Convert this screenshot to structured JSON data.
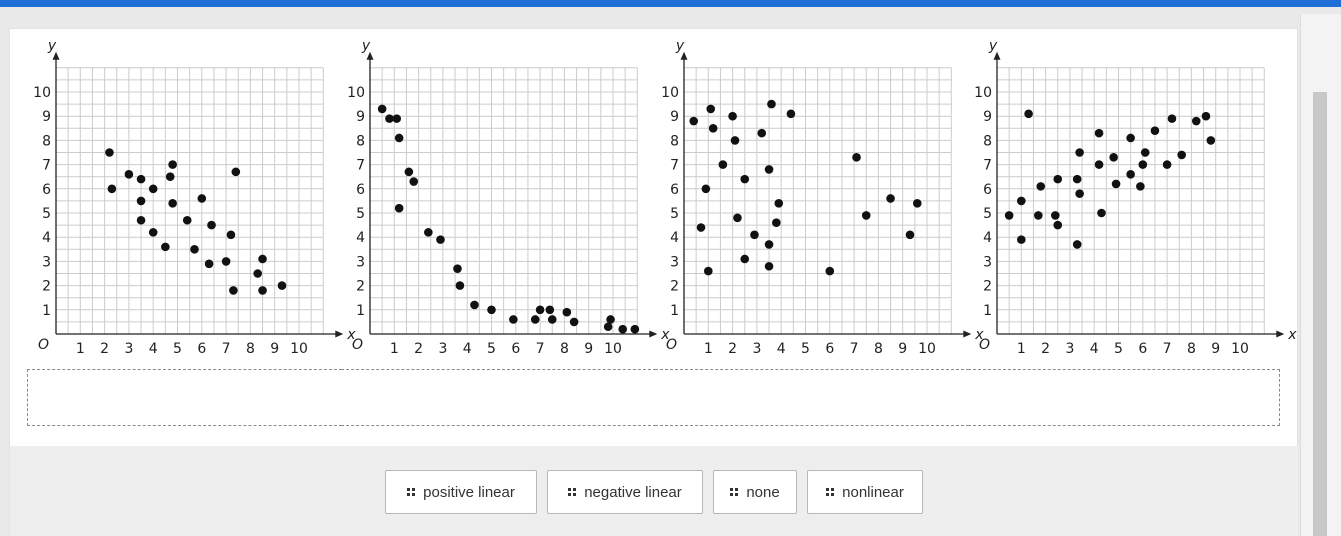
{
  "colors": {
    "topbar": "#1f6fd6",
    "point": "#111111",
    "grid": "#cccccc"
  },
  "chart_data": [
    {
      "type": "scatter",
      "xlabel": "x",
      "ylabel": "y",
      "xlim": [
        0,
        11
      ],
      "ylim": [
        0,
        11
      ],
      "grid": true,
      "x_ticks": [
        "1",
        "2",
        "3",
        "4",
        "5",
        "6",
        "7",
        "8",
        "9",
        "10"
      ],
      "y_ticks": [
        "1",
        "2",
        "3",
        "4",
        "5",
        "6",
        "7",
        "8",
        "9",
        "10"
      ],
      "points": [
        [
          2.2,
          7.5
        ],
        [
          2.3,
          6.0
        ],
        [
          3.0,
          6.6
        ],
        [
          3.5,
          6.4
        ],
        [
          3.5,
          5.5
        ],
        [
          3.5,
          4.7
        ],
        [
          4.0,
          6.0
        ],
        [
          4.0,
          4.2
        ],
        [
          4.5,
          3.6
        ],
        [
          4.7,
          6.5
        ],
        [
          4.8,
          7.0
        ],
        [
          4.8,
          5.4
        ],
        [
          5.4,
          4.7
        ],
        [
          5.7,
          3.5
        ],
        [
          6.0,
          5.6
        ],
        [
          6.3,
          2.9
        ],
        [
          6.4,
          4.5
        ],
        [
          7.0,
          3.0
        ],
        [
          7.2,
          4.1
        ],
        [
          7.3,
          1.8
        ],
        [
          7.4,
          6.7
        ],
        [
          8.3,
          2.5
        ],
        [
          8.5,
          3.1
        ],
        [
          8.5,
          1.8
        ],
        [
          9.3,
          2.0
        ]
      ]
    },
    {
      "type": "scatter",
      "xlabel": "x",
      "ylabel": "y",
      "xlim": [
        0,
        11
      ],
      "ylim": [
        0,
        11
      ],
      "grid": true,
      "x_ticks": [
        "1",
        "2",
        "3",
        "4",
        "5",
        "6",
        "7",
        "8",
        "9",
        "10"
      ],
      "y_ticks": [
        "1",
        "2",
        "3",
        "4",
        "5",
        "6",
        "7",
        "8",
        "9",
        "10"
      ],
      "points": [
        [
          0.5,
          9.3
        ],
        [
          0.8,
          8.9
        ],
        [
          1.1,
          8.9
        ],
        [
          1.2,
          8.1
        ],
        [
          1.2,
          5.2
        ],
        [
          1.6,
          6.7
        ],
        [
          1.8,
          6.3
        ],
        [
          2.4,
          4.2
        ],
        [
          2.9,
          3.9
        ],
        [
          3.6,
          2.7
        ],
        [
          3.7,
          2.0
        ],
        [
          4.3,
          1.2
        ],
        [
          5.0,
          1.0
        ],
        [
          5.9,
          0.6
        ],
        [
          6.8,
          0.6
        ],
        [
          7.0,
          1.0
        ],
        [
          7.4,
          1.0
        ],
        [
          7.5,
          0.6
        ],
        [
          8.1,
          0.9
        ],
        [
          8.4,
          0.5
        ],
        [
          9.8,
          0.3
        ],
        [
          9.9,
          0.6
        ],
        [
          10.4,
          0.2
        ],
        [
          10.9,
          0.2
        ]
      ]
    },
    {
      "type": "scatter",
      "xlabel": "x",
      "ylabel": "y",
      "xlim": [
        0,
        11
      ],
      "ylim": [
        0,
        11
      ],
      "grid": true,
      "x_ticks": [
        "1",
        "2",
        "3",
        "4",
        "5",
        "6",
        "7",
        "8",
        "9",
        "10"
      ],
      "y_ticks": [
        "1",
        "2",
        "3",
        "4",
        "5",
        "6",
        "7",
        "8",
        "9",
        "10"
      ],
      "points": [
        [
          0.4,
          8.8
        ],
        [
          0.7,
          4.4
        ],
        [
          0.9,
          6.0
        ],
        [
          1.0,
          2.6
        ],
        [
          1.1,
          9.3
        ],
        [
          1.2,
          8.5
        ],
        [
          1.6,
          7.0
        ],
        [
          2.0,
          9.0
        ],
        [
          2.1,
          8.0
        ],
        [
          2.2,
          4.8
        ],
        [
          2.5,
          3.1
        ],
        [
          2.5,
          6.4
        ],
        [
          2.9,
          4.1
        ],
        [
          3.2,
          8.3
        ],
        [
          3.5,
          3.7
        ],
        [
          3.5,
          2.8
        ],
        [
          3.5,
          6.8
        ],
        [
          3.6,
          9.5
        ],
        [
          3.8,
          4.6
        ],
        [
          3.9,
          5.4
        ],
        [
          4.4,
          9.1
        ],
        [
          6.0,
          2.6
        ],
        [
          7.1,
          7.3
        ],
        [
          7.5,
          4.9
        ],
        [
          8.5,
          5.6
        ],
        [
          9.3,
          4.1
        ],
        [
          9.6,
          5.4
        ]
      ]
    },
    {
      "type": "scatter",
      "xlabel": "x",
      "ylabel": "y",
      "xlim": [
        0,
        11
      ],
      "ylim": [
        0,
        11
      ],
      "grid": true,
      "x_ticks": [
        "1",
        "2",
        "3",
        "4",
        "5",
        "6",
        "7",
        "8",
        "9",
        "10"
      ],
      "y_ticks": [
        "1",
        "2",
        "3",
        "4",
        "5",
        "6",
        "7",
        "8",
        "9",
        "10"
      ],
      "points": [
        [
          0.5,
          4.9
        ],
        [
          1.0,
          3.9
        ],
        [
          1.0,
          5.5
        ],
        [
          1.3,
          9.1
        ],
        [
          1.7,
          4.9
        ],
        [
          1.8,
          6.1
        ],
        [
          2.4,
          4.9
        ],
        [
          2.5,
          4.5
        ],
        [
          2.5,
          6.4
        ],
        [
          3.3,
          3.7
        ],
        [
          3.3,
          6.4
        ],
        [
          3.4,
          7.5
        ],
        [
          3.4,
          5.8
        ],
        [
          4.2,
          8.3
        ],
        [
          4.2,
          7.0
        ],
        [
          4.3,
          5.0
        ],
        [
          4.8,
          7.3
        ],
        [
          4.9,
          6.2
        ],
        [
          5.5,
          6.6
        ],
        [
          5.5,
          8.1
        ],
        [
          5.9,
          6.1
        ],
        [
          6.0,
          7.0
        ],
        [
          6.1,
          7.5
        ],
        [
          6.5,
          8.4
        ],
        [
          7.0,
          7.0
        ],
        [
          7.2,
          8.9
        ],
        [
          7.6,
          7.4
        ],
        [
          8.2,
          8.8
        ],
        [
          8.6,
          9.0
        ],
        [
          8.8,
          8.0
        ]
      ]
    }
  ],
  "answer_choices": [
    "positive linear",
    "negative linear",
    "none",
    "nonlinear"
  ]
}
